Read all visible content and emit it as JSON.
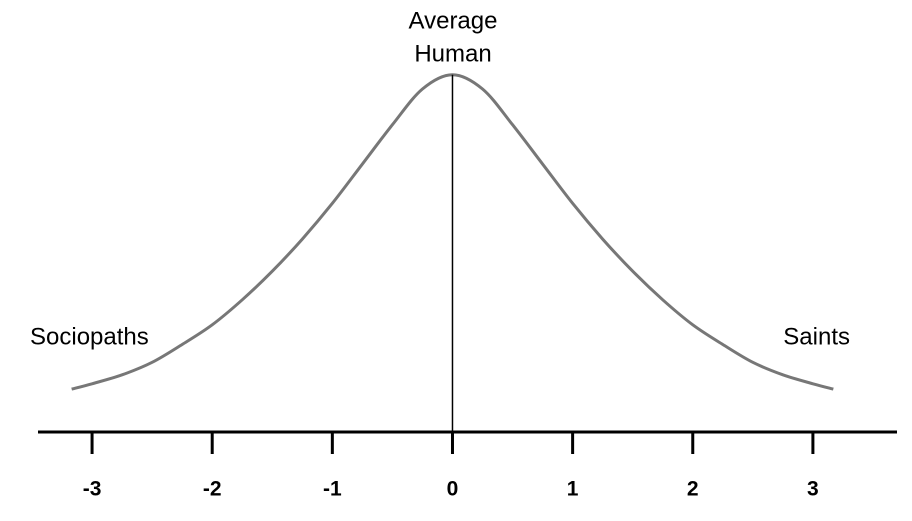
{
  "chart_data": {
    "type": "line",
    "annotations": [
      "Average",
      "Human",
      "Sociopaths",
      "Saints"
    ],
    "x": [
      -3.17,
      -3,
      -2.75,
      -2.5,
      -2.25,
      -2,
      -1.75,
      -1.5,
      -1.25,
      -1,
      -0.75,
      -0.5,
      -0.25,
      0,
      0.25,
      0.5,
      0.75,
      1,
      1.25,
      1.5,
      1.75,
      2,
      2.25,
      2.5,
      2.75,
      3,
      3.17
    ],
    "series": [
      {
        "color": "#777777",
        "values": [
          0.12,
          0.135,
          0.16,
          0.195,
          0.245,
          0.3,
          0.37,
          0.45,
          0.54,
          0.64,
          0.75,
          0.86,
          0.96,
          1.0,
          0.96,
          0.86,
          0.75,
          0.64,
          0.54,
          0.45,
          0.37,
          0.3,
          0.245,
          0.195,
          0.16,
          0.135,
          0.12
        ]
      }
    ],
    "xlim": [
      -3.45,
      3.7
    ],
    "xticks": [
      -3,
      -2,
      -1,
      0,
      1,
      2,
      3
    ],
    "ylim": [
      0,
      1.1
    ],
    "grid": false
  }
}
